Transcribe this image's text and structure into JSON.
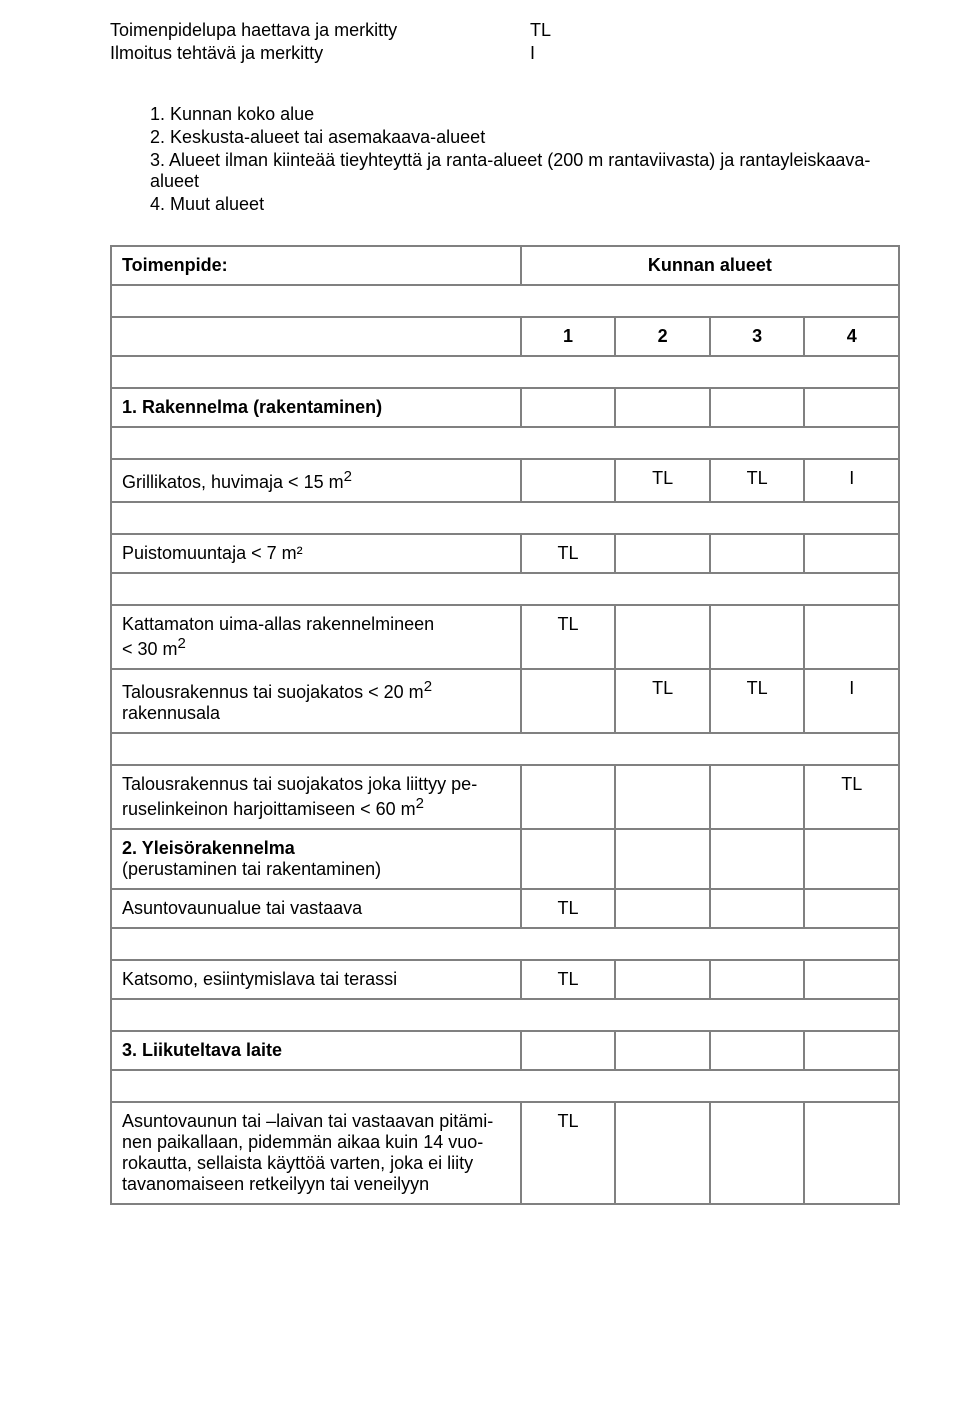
{
  "legend": [
    {
      "label": "Toimenpidelupa haettava ja merkitty",
      "code": "TL"
    },
    {
      "label": "Ilmoitus tehtävä ja merkitty",
      "code": "I"
    }
  ],
  "numbered": [
    "1. Kunnan koko alue",
    "2. Keskusta-alueet tai asemakaava-alueet",
    "3. Alueet ilman kiinteää tieyhteyttä ja ranta-alueet (200 m rantaviivasta) ja rantayleiskaava-alueet",
    "4. Muut alueet"
  ],
  "tableHeader": {
    "left": "Toimenpide:",
    "right": "Kunnan alueet",
    "cols": [
      "1",
      "2",
      "3",
      "4"
    ]
  },
  "rows": {
    "r0_section": "1. Rakennelma (rakentaminen)",
    "r1_desc": "Grillikatos, huvimaja < 15 m",
    "r1_sup": "2",
    "r1_v2": "TL",
    "r1_v3": "TL",
    "r1_v4": "I",
    "r2_desc": "Puistomuuntaja < 7 m²",
    "r2_v1": "TL",
    "r3_desc_a": "Kattamaton uima-allas rakennelmineen",
    "r3_desc_b": "< 30 m",
    "r3_sup": "2",
    "r3_v1": "TL",
    "r4_desc": "Talousrakennus tai suojakatos < 20 m",
    "r4_sup": "2",
    "r4_desc2": "rakennusala",
    "r4_v2": "TL",
    "r4_v3": "TL",
    "r4_v4": "I",
    "r5_desc_a": "Talousrakennus tai suojakatos joka liittyy pe-",
    "r5_desc_b": "ruselinkeinon harjoittamiseen < 60 m",
    "r5_sup": "2",
    "r5_v4": "TL",
    "r6_sec_a": "2. Yleisörakennelma",
    "r6_sec_b": "(perustaminen tai rakentaminen)",
    "r7_desc": "Asuntovaunualue tai vastaava",
    "r7_v1": "TL",
    "r8_desc": "Katsomo, esiintymislava tai terassi",
    "r8_v1": "TL",
    "r9_section": "3. Liikuteltava laite",
    "r10_a": "Asuntovaunun tai –laivan tai vastaavan pitämi-",
    "r10_b": "nen paikallaan, pidemmän aikaa kuin 14 vuo-",
    "r10_c": "rokautta, sellaista käyttöä varten, joka ei liity",
    "r10_d": "tavanomaiseen retkeilyyn tai veneilyyn",
    "r10_v1": "TL"
  }
}
